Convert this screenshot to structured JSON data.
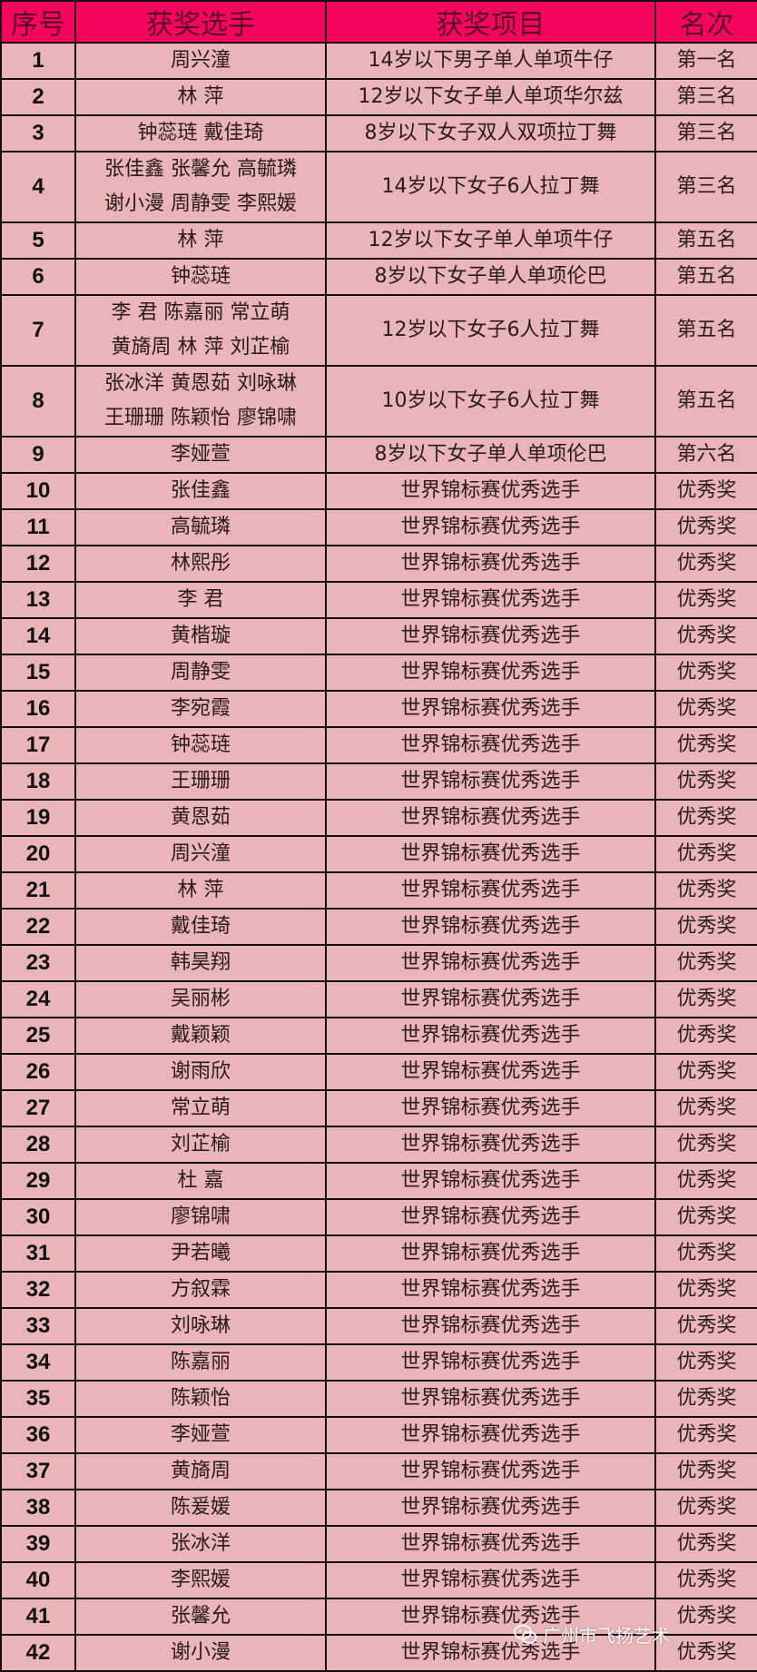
{
  "colors": {
    "header_bg": "#f5065e",
    "cell_bg": "#e9b5b9",
    "border": "#1a0a0d"
  },
  "headers": [
    "序号",
    "获奖选手",
    "获奖项目",
    "名次"
  ],
  "rows": [
    {
      "no": "1",
      "names": [
        "周兴潼"
      ],
      "event": "14岁以下男子单人单项牛仔",
      "rank": "第一名"
    },
    {
      "no": "2",
      "names": [
        "林 萍"
      ],
      "event": "12岁以下女子单人单项华尔兹",
      "rank": "第三名"
    },
    {
      "no": "3",
      "names": [
        "钟蕊琏 戴佳琦"
      ],
      "event": "8岁以下女子双人双项拉丁舞",
      "rank": "第三名"
    },
    {
      "no": "4",
      "names": [
        "张佳鑫 张馨允 高毓璘",
        "谢小漫 周静雯 李熙媛"
      ],
      "event": "14岁以下女子6人拉丁舞",
      "rank": "第三名"
    },
    {
      "no": "5",
      "names": [
        "林 萍"
      ],
      "event": "12岁以下女子单人单项牛仔",
      "rank": "第五名"
    },
    {
      "no": "6",
      "names": [
        "钟蕊琏"
      ],
      "event": "8岁以下女子单人单项伦巴",
      "rank": "第五名"
    },
    {
      "no": "7",
      "names": [
        "李 君 陈嘉丽 常立萌",
        "黄旖周 林 萍 刘芷榆"
      ],
      "event": "12岁以下女子6人拉丁舞",
      "rank": "第五名"
    },
    {
      "no": "8",
      "names": [
        "张冰洋 黄恩茹 刘咏琳",
        "王珊珊 陈颖怡 廖锦啸"
      ],
      "event": "10岁以下女子6人拉丁舞",
      "rank": "第五名"
    },
    {
      "no": "9",
      "names": [
        "李娅萱"
      ],
      "event": "8岁以下女子单人单项伦巴",
      "rank": "第六名"
    },
    {
      "no": "10",
      "names": [
        "张佳鑫"
      ],
      "event": "世界锦标赛优秀选手",
      "rank": "优秀奖"
    },
    {
      "no": "11",
      "names": [
        "高毓璘"
      ],
      "event": "世界锦标赛优秀选手",
      "rank": "优秀奖"
    },
    {
      "no": "12",
      "names": [
        "林熙彤"
      ],
      "event": "世界锦标赛优秀选手",
      "rank": "优秀奖"
    },
    {
      "no": "13",
      "names": [
        "李 君"
      ],
      "event": "世界锦标赛优秀选手",
      "rank": "优秀奖"
    },
    {
      "no": "14",
      "names": [
        "黄楷璇"
      ],
      "event": "世界锦标赛优秀选手",
      "rank": "优秀奖"
    },
    {
      "no": "15",
      "names": [
        "周静雯"
      ],
      "event": "世界锦标赛优秀选手",
      "rank": "优秀奖"
    },
    {
      "no": "16",
      "names": [
        "李宛霞"
      ],
      "event": "世界锦标赛优秀选手",
      "rank": "优秀奖"
    },
    {
      "no": "17",
      "names": [
        "钟蕊琏"
      ],
      "event": "世界锦标赛优秀选手",
      "rank": "优秀奖"
    },
    {
      "no": "18",
      "names": [
        "王珊珊"
      ],
      "event": "世界锦标赛优秀选手",
      "rank": "优秀奖"
    },
    {
      "no": "19",
      "names": [
        "黄恩茹"
      ],
      "event": "世界锦标赛优秀选手",
      "rank": "优秀奖"
    },
    {
      "no": "20",
      "names": [
        "周兴潼"
      ],
      "event": "世界锦标赛优秀选手",
      "rank": "优秀奖"
    },
    {
      "no": "21",
      "names": [
        "林 萍"
      ],
      "event": "世界锦标赛优秀选手",
      "rank": "优秀奖"
    },
    {
      "no": "22",
      "names": [
        "戴佳琦"
      ],
      "event": "世界锦标赛优秀选手",
      "rank": "优秀奖"
    },
    {
      "no": "23",
      "names": [
        "韩昊翔"
      ],
      "event": "世界锦标赛优秀选手",
      "rank": "优秀奖"
    },
    {
      "no": "24",
      "names": [
        "吴丽彬"
      ],
      "event": "世界锦标赛优秀选手",
      "rank": "优秀奖"
    },
    {
      "no": "25",
      "names": [
        "戴颖颖"
      ],
      "event": "世界锦标赛优秀选手",
      "rank": "优秀奖"
    },
    {
      "no": "26",
      "names": [
        "谢雨欣"
      ],
      "event": "世界锦标赛优秀选手",
      "rank": "优秀奖"
    },
    {
      "no": "27",
      "names": [
        "常立萌"
      ],
      "event": "世界锦标赛优秀选手",
      "rank": "优秀奖"
    },
    {
      "no": "28",
      "names": [
        "刘芷榆"
      ],
      "event": "世界锦标赛优秀选手",
      "rank": "优秀奖"
    },
    {
      "no": "29",
      "names": [
        "杜 嘉"
      ],
      "event": "世界锦标赛优秀选手",
      "rank": "优秀奖"
    },
    {
      "no": "30",
      "names": [
        "廖锦啸"
      ],
      "event": "世界锦标赛优秀选手",
      "rank": "优秀奖"
    },
    {
      "no": "31",
      "names": [
        "尹若曦"
      ],
      "event": "世界锦标赛优秀选手",
      "rank": "优秀奖"
    },
    {
      "no": "32",
      "names": [
        "方叙霖"
      ],
      "event": "世界锦标赛优秀选手",
      "rank": "优秀奖"
    },
    {
      "no": "33",
      "names": [
        "刘咏琳"
      ],
      "event": "世界锦标赛优秀选手",
      "rank": "优秀奖"
    },
    {
      "no": "34",
      "names": [
        "陈嘉丽"
      ],
      "event": "世界锦标赛优秀选手",
      "rank": "优秀奖"
    },
    {
      "no": "35",
      "names": [
        "陈颖怡"
      ],
      "event": "世界锦标赛优秀选手",
      "rank": "优秀奖"
    },
    {
      "no": "36",
      "names": [
        "李娅萱"
      ],
      "event": "世界锦标赛优秀选手",
      "rank": "优秀奖"
    },
    {
      "no": "37",
      "names": [
        "黄旖周"
      ],
      "event": "世界锦标赛优秀选手",
      "rank": "优秀奖"
    },
    {
      "no": "38",
      "names": [
        "陈爰媛"
      ],
      "event": "世界锦标赛优秀选手",
      "rank": "优秀奖"
    },
    {
      "no": "39",
      "names": [
        "张冰洋"
      ],
      "event": "世界锦标赛优秀选手",
      "rank": "优秀奖"
    },
    {
      "no": "40",
      "names": [
        "李熙媛"
      ],
      "event": "世界锦标赛优秀选手",
      "rank": "优秀奖"
    },
    {
      "no": "41",
      "names": [
        "张馨允"
      ],
      "event": "世界锦标赛优秀选手",
      "rank": "优秀奖"
    },
    {
      "no": "42",
      "names": [
        "谢小漫"
      ],
      "event": "世界锦标赛优秀选手",
      "rank": "优秀奖"
    }
  ],
  "watermark": {
    "icon": "wechat-icon",
    "text": "广州市飞扬艺术"
  }
}
